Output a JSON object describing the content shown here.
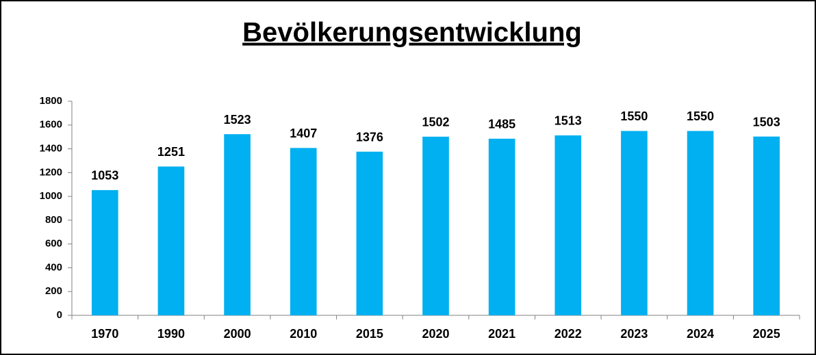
{
  "chart_data": {
    "type": "bar",
    "title": "Bevölkerungsentwicklung",
    "categories": [
      "1970",
      "1990",
      "2000",
      "2010",
      "2015",
      "2020",
      "2021",
      "2022",
      "2023",
      "2024",
      "2025"
    ],
    "values": [
      1053,
      1251,
      1523,
      1407,
      1376,
      1502,
      1485,
      1513,
      1550,
      1550,
      1503
    ],
    "color": "#00b0f0",
    "ylim": [
      0,
      1800
    ],
    "yticks": [
      0,
      200,
      400,
      600,
      800,
      1000,
      1200,
      1400,
      1600,
      1800
    ],
    "grid": false
  }
}
